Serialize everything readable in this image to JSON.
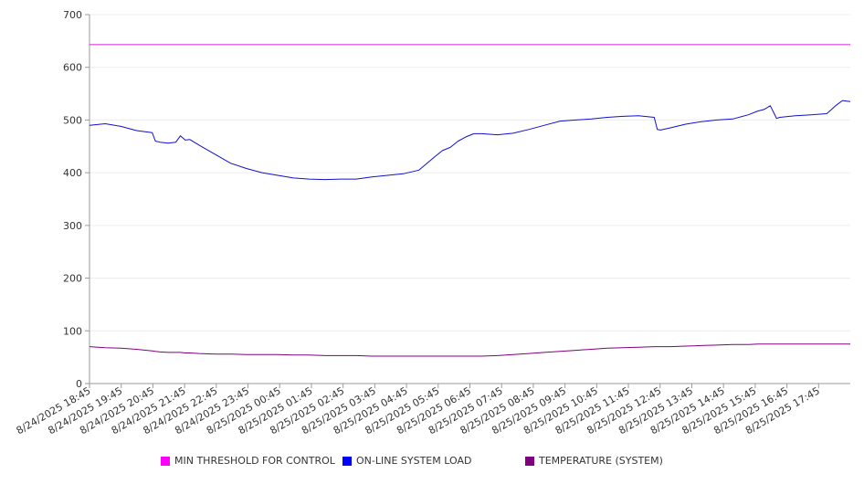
{
  "chart_data": {
    "type": "line",
    "title": "",
    "xlabel": "",
    "ylabel": "",
    "ylim": [
      0,
      700
    ],
    "yticks": [
      "0",
      "100",
      "200",
      "300",
      "400",
      "500",
      "600",
      "700"
    ],
    "xticks": [
      "8/24/2025 18:45",
      "8/24/2025 19:45",
      "8/24/2025 20:45",
      "8/24/2025 21:45",
      "8/24/2025 22:45",
      "8/24/2025 23:45",
      "8/25/2025 00:45",
      "8/25/2025 01:45",
      "8/25/2025 02:45",
      "8/25/2025 03:45",
      "8/25/2025 04:45",
      "8/25/2025 05:45",
      "8/25/2025 06:45",
      "8/25/2025 07:45",
      "8/25/2025 08:45",
      "8/25/2025 09:45",
      "8/25/2025 10:45",
      "8/25/2025 11:45",
      "8/25/2025 12:45",
      "8/25/2025 13:45",
      "8/25/2025 14:45",
      "8/25/2025 15:45",
      "8/25/2025 16:45",
      "8/25/2025 17:45"
    ],
    "x_hours": [
      0,
      0.5,
      1,
      1.5,
      2,
      2.1,
      2.25,
      2.5,
      2.75,
      2.9,
      3.05,
      3.2,
      3.5,
      4,
      4.5,
      5,
      5.5,
      6,
      6.5,
      7,
      7.5,
      8,
      8.5,
      9,
      9.5,
      10,
      10.5,
      11,
      11.25,
      11.5,
      11.75,
      12,
      12.25,
      12.5,
      13,
      13.5,
      14,
      14.5,
      15,
      15.5,
      16,
      16.5,
      17,
      17.5,
      18,
      18.1,
      18.2,
      18.5,
      19,
      19.5,
      20,
      20.5,
      21,
      21.3,
      21.5,
      21.7,
      21.9,
      22,
      22.5,
      23,
      23.5,
      23.8,
      24,
      24.25
    ],
    "series": [
      {
        "name": "MIN THRESHOLD FOR CONTROL",
        "color": "#d61ed6",
        "values": [
          643,
          643,
          643,
          643,
          643,
          643,
          643,
          643,
          643,
          643,
          643,
          643,
          643,
          643,
          643,
          643,
          643,
          643,
          643,
          643,
          643,
          643,
          643,
          643,
          643,
          643,
          643,
          643,
          643,
          643,
          643,
          643,
          643,
          643,
          643,
          643,
          643,
          643,
          643,
          643,
          643,
          643,
          643,
          643,
          643,
          643,
          643,
          643,
          643,
          643,
          643,
          643,
          643,
          643,
          643,
          643,
          643,
          643,
          643,
          643,
          643,
          643,
          643,
          643
        ]
      },
      {
        "name": "ON-LINE SYSTEM LOAD",
        "color": "#1010d0",
        "values": [
          490,
          493,
          488,
          480,
          476,
          460,
          458,
          456,
          458,
          470,
          462,
          463,
          452,
          435,
          418,
          408,
          400,
          395,
          390,
          388,
          387,
          388,
          388,
          392,
          395,
          398,
          405,
          430,
          442,
          448,
          460,
          468,
          474,
          474,
          472,
          475,
          482,
          490,
          498,
          500,
          502,
          505,
          507,
          508,
          505,
          482,
          481,
          485,
          492,
          497,
          500,
          502,
          510,
          517,
          520,
          527,
          503,
          505,
          508,
          510,
          512,
          528,
          537,
          535
        ]
      },
      {
        "name": "TEMPERATURE (SYSTEM)",
        "color": "#800080",
        "values": [
          70,
          68,
          67,
          65,
          62,
          61,
          60,
          59,
          59,
          59,
          58,
          58,
          57,
          56,
          56,
          55,
          55,
          55,
          54,
          54,
          53,
          53,
          53,
          52,
          52,
          52,
          52,
          52,
          52,
          52,
          52,
          52,
          52,
          52,
          53,
          55,
          57,
          59,
          61,
          63,
          65,
          67,
          68,
          69,
          70,
          70,
          70,
          70,
          71,
          72,
          73,
          74,
          74,
          75,
          75,
          75,
          75,
          75,
          75,
          75,
          75,
          75,
          75,
          75
        ]
      }
    ],
    "legend_position": "bottom",
    "grid": true
  }
}
